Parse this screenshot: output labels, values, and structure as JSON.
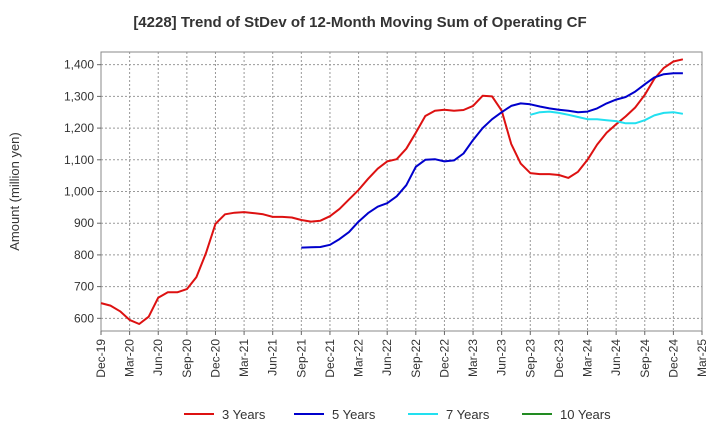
{
  "chart_data": {
    "type": "line",
    "title": "[4228]  Trend of StDev of 12-Month Moving Sum of Operating CF",
    "ylabel": "Amount (million yen)",
    "xlabel": "",
    "ylim": [
      560,
      1440
    ],
    "yticks": [
      600,
      700,
      800,
      900,
      1000,
      1100,
      1200,
      1300,
      1400
    ],
    "ytick_labels": [
      "600",
      "700",
      "800",
      "900",
      "1,000",
      "1,100",
      "1,200",
      "1,300",
      "1,400"
    ],
    "xticks": [
      "2019-12",
      "2020-03",
      "2020-06",
      "2020-09",
      "2020-12",
      "2021-03",
      "2021-06",
      "2021-09",
      "2021-12",
      "2022-03",
      "2022-06",
      "2022-09",
      "2022-12",
      "2023-03",
      "2023-06",
      "2023-09",
      "2023-12",
      "2024-03",
      "2024-06",
      "2024-09",
      "2024-12",
      "2025-03"
    ],
    "xtick_labels": [
      "Dec-19",
      "Mar-20",
      "Jun-20",
      "Sep-20",
      "Dec-20",
      "Mar-21",
      "Jun-21",
      "Sep-21",
      "Dec-21",
      "Mar-22",
      "Jun-22",
      "Sep-22",
      "Dec-22",
      "Mar-23",
      "Jun-23",
      "Sep-23",
      "Dec-23",
      "Mar-24",
      "Jun-24",
      "Sep-24",
      "Dec-24",
      "Mar-25"
    ],
    "x_start": "2019-12",
    "grid": true,
    "legend_position": "bottom",
    "series": [
      {
        "name": "3 Years",
        "color": "#dd1111",
        "values": [
          [
            "2019-12",
            648
          ],
          [
            "2020-01",
            640
          ],
          [
            "2020-02",
            622
          ],
          [
            "2020-03",
            595
          ],
          [
            "2020-04",
            582
          ],
          [
            "2020-05",
            605
          ],
          [
            "2020-06",
            665
          ],
          [
            "2020-07",
            682
          ],
          [
            "2020-08",
            682
          ],
          [
            "2020-09",
            692
          ],
          [
            "2020-10",
            730
          ],
          [
            "2020-11",
            805
          ],
          [
            "2020-12",
            898
          ],
          [
            "2021-01",
            928
          ],
          [
            "2021-02",
            933
          ],
          [
            "2021-03",
            935
          ],
          [
            "2021-04",
            932
          ],
          [
            "2021-05",
            928
          ],
          [
            "2021-06",
            920
          ],
          [
            "2021-07",
            920
          ],
          [
            "2021-08",
            918
          ],
          [
            "2021-09",
            910
          ],
          [
            "2021-10",
            905
          ],
          [
            "2021-11",
            908
          ],
          [
            "2021-12",
            922
          ],
          [
            "2022-01",
            945
          ],
          [
            "2022-02",
            975
          ],
          [
            "2022-03",
            1005
          ],
          [
            "2022-04",
            1040
          ],
          [
            "2022-05",
            1072
          ],
          [
            "2022-06",
            1095
          ],
          [
            "2022-07",
            1102
          ],
          [
            "2022-08",
            1135
          ],
          [
            "2022-09",
            1185
          ],
          [
            "2022-10",
            1238
          ],
          [
            "2022-11",
            1255
          ],
          [
            "2022-12",
            1258
          ],
          [
            "2023-01",
            1255
          ],
          [
            "2023-02",
            1257
          ],
          [
            "2023-03",
            1270
          ],
          [
            "2023-04",
            1302
          ],
          [
            "2023-05",
            1300
          ],
          [
            "2023-06",
            1255
          ],
          [
            "2023-07",
            1150
          ],
          [
            "2023-08",
            1088
          ],
          [
            "2023-09",
            1058
          ],
          [
            "2023-10",
            1055
          ],
          [
            "2023-11",
            1055
          ],
          [
            "2023-12",
            1052
          ],
          [
            "2024-01",
            1043
          ],
          [
            "2024-02",
            1062
          ],
          [
            "2024-03",
            1100
          ],
          [
            "2024-04",
            1148
          ],
          [
            "2024-05",
            1185
          ],
          [
            "2024-06",
            1212
          ],
          [
            "2024-07",
            1237
          ],
          [
            "2024-08",
            1265
          ],
          [
            "2024-09",
            1305
          ],
          [
            "2024-10",
            1355
          ],
          [
            "2024-11",
            1390
          ],
          [
            "2024-12",
            1410
          ],
          [
            "2025-01",
            1417
          ]
        ]
      },
      {
        "name": "5 Years",
        "color": "#0000cc",
        "values": [
          [
            "2021-09",
            823
          ],
          [
            "2021-10",
            824
          ],
          [
            "2021-11",
            825
          ],
          [
            "2021-12",
            832
          ],
          [
            "2022-01",
            850
          ],
          [
            "2022-02",
            872
          ],
          [
            "2022-03",
            905
          ],
          [
            "2022-04",
            932
          ],
          [
            "2022-05",
            952
          ],
          [
            "2022-06",
            963
          ],
          [
            "2022-07",
            985
          ],
          [
            "2022-08",
            1020
          ],
          [
            "2022-09",
            1078
          ],
          [
            "2022-10",
            1100
          ],
          [
            "2022-11",
            1102
          ],
          [
            "2022-12",
            1095
          ],
          [
            "2023-01",
            1098
          ],
          [
            "2023-02",
            1120
          ],
          [
            "2023-03",
            1162
          ],
          [
            "2023-04",
            1200
          ],
          [
            "2023-05",
            1228
          ],
          [
            "2023-06",
            1250
          ],
          [
            "2023-07",
            1270
          ],
          [
            "2023-08",
            1278
          ],
          [
            "2023-09",
            1275
          ],
          [
            "2023-10",
            1268
          ],
          [
            "2023-11",
            1262
          ],
          [
            "2023-12",
            1258
          ],
          [
            "2024-01",
            1255
          ],
          [
            "2024-02",
            1250
          ],
          [
            "2024-03",
            1252
          ],
          [
            "2024-04",
            1262
          ],
          [
            "2024-05",
            1278
          ],
          [
            "2024-06",
            1290
          ],
          [
            "2024-07",
            1298
          ],
          [
            "2024-08",
            1315
          ],
          [
            "2024-09",
            1338
          ],
          [
            "2024-10",
            1360
          ],
          [
            "2024-11",
            1370
          ],
          [
            "2024-12",
            1373
          ],
          [
            "2025-01",
            1373
          ]
        ]
      },
      {
        "name": "7 Years",
        "color": "#22e0f0",
        "values": [
          [
            "2023-09",
            1242
          ],
          [
            "2023-10",
            1250
          ],
          [
            "2023-11",
            1252
          ],
          [
            "2023-12",
            1248
          ],
          [
            "2024-01",
            1242
          ],
          [
            "2024-02",
            1235
          ],
          [
            "2024-03",
            1228
          ],
          [
            "2024-04",
            1228
          ],
          [
            "2024-05",
            1225
          ],
          [
            "2024-06",
            1222
          ],
          [
            "2024-07",
            1215
          ],
          [
            "2024-08",
            1215
          ],
          [
            "2024-09",
            1225
          ],
          [
            "2024-10",
            1240
          ],
          [
            "2024-11",
            1248
          ],
          [
            "2024-12",
            1250
          ],
          [
            "2025-01",
            1245
          ]
        ]
      },
      {
        "name": "10 Years",
        "color": "#228b22",
        "values": []
      }
    ]
  }
}
